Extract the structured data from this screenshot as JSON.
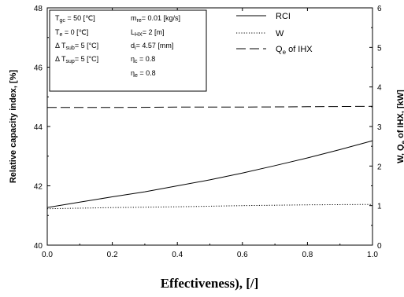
{
  "chart_data": {
    "type": "line",
    "title": "",
    "xlabel": "Effectiveness),  [/]",
    "ylabel_left": "Relative capacity index, [%]",
    "ylabel_right": "W, Qe of IHX, [kW]",
    "xlim": [
      0.0,
      1.0
    ],
    "ylim_left": [
      40,
      48
    ],
    "ylim_right": [
      0,
      6
    ],
    "x_ticks": [
      "0.0",
      "0.2",
      "0.4",
      "0.6",
      "0.8",
      "1.0"
    ],
    "y_left_ticks": [
      "40",
      "42",
      "44",
      "46",
      "48"
    ],
    "y_right_ticks": [
      "0",
      "1",
      "2",
      "3",
      "4",
      "5",
      "6"
    ],
    "grid": false,
    "legend_position": "top-right",
    "series": [
      {
        "name": "RCI",
        "axis": "left",
        "style": "solid",
        "x": [
          0.0,
          0.1,
          0.2,
          0.3,
          0.4,
          0.5,
          0.6,
          0.7,
          0.8,
          0.9,
          1.0
        ],
        "y": [
          41.27,
          41.45,
          41.63,
          41.8,
          42.0,
          42.2,
          42.43,
          42.68,
          42.94,
          43.22,
          43.52
        ]
      },
      {
        "name": "W",
        "axis": "right",
        "style": "dotted",
        "x": [
          0.0,
          0.2,
          0.4,
          0.6,
          0.8,
          1.0
        ],
        "y": [
          0.92,
          0.95,
          0.97,
          1.0,
          1.02,
          1.03
        ]
      },
      {
        "name": "Qe of IHX",
        "axis": "right",
        "style": "dashed",
        "x": [
          0.0,
          0.2,
          0.4,
          0.6,
          0.8,
          1.0
        ],
        "y": [
          3.48,
          3.48,
          3.49,
          3.49,
          3.5,
          3.51
        ]
      }
    ],
    "conditions": [
      {
        "main": "T",
        "sub": "gc",
        "rest": " = 50 [℃]"
      },
      {
        "main": "T",
        "sub": "e",
        "rest": " = 0 [℃]"
      },
      {
        "main": "Δ  T",
        "sub": "sub",
        "rest": "= 5 [°C]"
      },
      {
        "main": "Δ  T",
        "sub": "sup",
        "rest": "= 5 [°C]"
      },
      {
        "main": "m",
        "sub": "re",
        "rest": "= 0.01 [kg/s]"
      },
      {
        "main": "L",
        "sub": "HX",
        "rest": "= 2 [m]"
      },
      {
        "main": "d",
        "sub": "i",
        "rest": "= 4.57 [mm]"
      },
      {
        "main": "η",
        "sub": "c",
        "rest": " = 0.8"
      },
      {
        "main": "η",
        "sub": "e",
        "rest": " = 0.8"
      }
    ],
    "colors": {
      "line": "#000000",
      "background": "#ffffff"
    }
  }
}
